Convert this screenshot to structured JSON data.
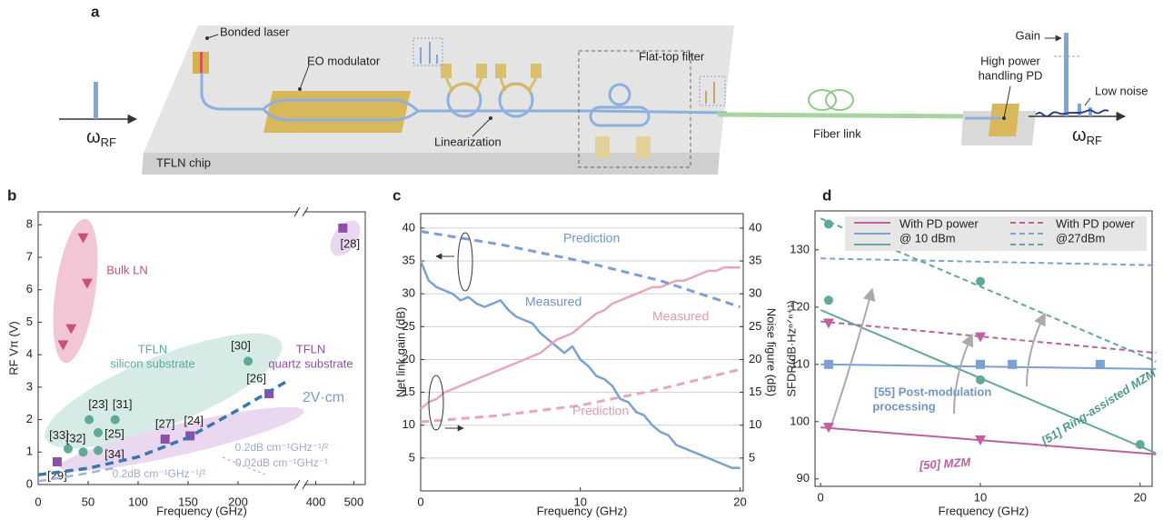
{
  "panel_labels": [
    "a",
    "b",
    "c",
    "d"
  ],
  "diagram": {
    "input": {
      "symbol": "ω",
      "subscript": "RF"
    },
    "output": {
      "symbol": "ω",
      "subscript": "RF"
    },
    "labels": {
      "laser": "Bonded laser",
      "modulator": "EO modulator",
      "linearization": "Linearization",
      "filter": "Flat-top filter",
      "fiber": "Fiber link",
      "pd": [
        "High power",
        "handling PD"
      ],
      "gain": "Gain",
      "noise": "Low noise",
      "chip": "TFLN chip"
    }
  },
  "chart_data": [
    {
      "type": "scatter",
      "xlabel": "Frequency (GHz)",
      "ylabel": "RF Vπ (V)",
      "xlim": [
        0,
        530
      ],
      "xbreak": [
        260,
        370
      ],
      "ylim": [
        0,
        8.4
      ],
      "xticks": [
        0,
        50,
        100,
        150,
        200,
        400,
        500
      ],
      "yticks": [
        0,
        1,
        2,
        3,
        4,
        5,
        6,
        7,
        8
      ],
      "grid": false,
      "series": [
        {
          "marker": "triangle",
          "color": "#c8507f",
          "x": [
            45,
            49,
            33,
            25
          ],
          "values": [
            7.6,
            6.2,
            4.8,
            4.3
          ]
        },
        {
          "marker": "circle",
          "color": "#5fa89a",
          "x": [
            51,
            77,
            60,
            30,
            45,
            60,
            210
          ],
          "values": [
            2.0,
            2.0,
            1.6,
            1.1,
            1.0,
            1.05,
            3.8
          ],
          "labels": [
            "[23]",
            "[31]",
            "[25]",
            "[33]",
            "[32]",
            "[34]",
            "[30]"
          ]
        },
        {
          "marker": "square",
          "color": "#8e4fa8",
          "x": [
            19,
            127,
            152,
            231,
            471
          ],
          "values": [
            0.7,
            1.4,
            1.5,
            2.8,
            7.9
          ],
          "labels": [
            "[29]",
            "[27]",
            "[24]",
            "[26]",
            "[28]"
          ]
        },
        {
          "line": true,
          "dash": true,
          "width": 3.5,
          "color": "#3a75b0",
          "x": [
            0,
            50,
            100,
            150,
            200,
            250
          ],
          "values": [
            0.3,
            0.5,
            0.85,
            1.45,
            2.3,
            3.2
          ]
        },
        {
          "line": true,
          "dash": true,
          "width": 2.5,
          "color": "#9cb3dc",
          "x": [
            0,
            40,
            75
          ],
          "values": [
            0.1,
            0.3,
            0.5
          ]
        }
      ],
      "annotations": [
        "Bulk LN",
        "TFLN",
        "silicon substrate",
        "TFLN",
        "quartz substrate",
        "2V·cm",
        "0.2dB cm⁻¹GHz⁻¹/²",
        "0.02dB cm⁻¹GHz⁻¹",
        "0.2dB cm⁻¹GHz⁻¹/²"
      ]
    },
    {
      "type": "line",
      "xlabel": "Frequency (GHz)",
      "ylabel": "Net link gain (dB)",
      "y2label": "Noise figure (dB)",
      "xlim": [
        0,
        20.2
      ],
      "ylim": [
        0,
        42.2
      ],
      "y2lim": [
        0,
        42.2
      ],
      "xticks": [
        0,
        10,
        20
      ],
      "yticks": [
        5,
        10,
        15,
        20,
        25,
        30,
        35,
        40
      ],
      "y2ticks": [
        5,
        10,
        15,
        20,
        25,
        30,
        35,
        40
      ],
      "grid": true,
      "series": [
        {
          "name": "Measured",
          "line": true,
          "width": 2.5,
          "color": "#7aa0d4",
          "x": [
            0,
            0.5,
            1,
            1.5,
            2,
            2.5,
            3,
            3.5,
            4,
            4.5,
            5,
            5.5,
            6,
            6.5,
            7,
            7.5,
            8,
            8.5,
            9,
            9.5,
            10,
            10.5,
            11,
            11.5,
            12,
            12.5,
            13,
            13.5,
            14,
            14.5,
            15,
            15.5,
            16,
            16.5,
            17,
            17.5,
            18,
            18.5,
            19,
            19.5,
            20
          ],
          "values": [
            35,
            32,
            31,
            30.5,
            30,
            29,
            29.5,
            28.5,
            28,
            28.5,
            29,
            27.5,
            26.5,
            26,
            25.5,
            24,
            23,
            22,
            21,
            22,
            20,
            19,
            17.5,
            17,
            16,
            14,
            13.5,
            12,
            11.5,
            10,
            9,
            8.5,
            7,
            6.5,
            6,
            5.5,
            5,
            4.5,
            4,
            3.5,
            3.5
          ]
        },
        {
          "name": "Measured",
          "axis": "y2",
          "line": true,
          "width": 2.5,
          "color": "#e8a6b8",
          "x": [
            0,
            0.5,
            1,
            1.5,
            2,
            2.5,
            3,
            3.5,
            4,
            4.5,
            5,
            5.5,
            6,
            6.5,
            7,
            7.5,
            8,
            8.5,
            9,
            9.5,
            10,
            10.5,
            11,
            11.5,
            12,
            12.5,
            13,
            13.5,
            14,
            14.5,
            15,
            15.5,
            16,
            16.5,
            17,
            17.5,
            18,
            18.5,
            19,
            19.5,
            20
          ],
          "values": [
            12.5,
            13.5,
            14,
            15,
            15.5,
            16,
            16.5,
            17,
            17.5,
            18,
            18.5,
            19,
            19.5,
            20,
            20.5,
            21,
            22,
            23,
            23.5,
            24,
            25,
            26,
            27,
            27.5,
            28.5,
            29,
            29.5,
            30,
            30.5,
            31,
            31,
            31.5,
            32,
            32,
            32.5,
            33,
            33.5,
            33.5,
            34,
            34,
            34
          ]
        },
        {
          "name": "Prediction",
          "line": true,
          "dash": true,
          "width": 3,
          "color": "#7aa0d4",
          "x": [
            0,
            5,
            10,
            15,
            20
          ],
          "values": [
            39.5,
            37.5,
            35,
            32,
            28
          ]
        },
        {
          "name": "Prediction",
          "axis": "y2",
          "line": true,
          "dash": true,
          "width": 3,
          "color": "#e8a6b8",
          "x": [
            0,
            5,
            10,
            15,
            20
          ],
          "values": [
            10.5,
            11.5,
            13,
            15.5,
            18.5
          ]
        }
      ]
    },
    {
      "type": "line",
      "xlabel": "Frequency (GHz)",
      "ylabel": "SFDR(dB·Hzⁿᐟⁿ⁺¹)",
      "xlim": [
        -0.35,
        20.75
      ],
      "ylim": [
        88.7,
        136.8
      ],
      "xticks": [
        0,
        10,
        20
      ],
      "yticks": [
        90,
        100,
        110,
        120,
        130
      ],
      "grid": false,
      "legend": [
        {
          "lines": [
            "With PD power",
            "@ 10 dBm"
          ],
          "dash": false
        },
        {
          "lines": [
            "With PD power",
            "@27dBm"
          ],
          "dash": true
        }
      ],
      "series": [
        {
          "line": true,
          "width": 2,
          "color": "#c0609f",
          "x": [
            0,
            21
          ],
          "values": [
            99,
            94.3
          ]
        },
        {
          "line": true,
          "width": 2,
          "color": "#7aa0d4",
          "x": [
            0,
            21
          ],
          "values": [
            110,
            109.2
          ]
        },
        {
          "line": true,
          "width": 2,
          "color": "#5fa89a",
          "x": [
            0,
            21
          ],
          "values": [
            119.5,
            94.5
          ]
        },
        {
          "line": true,
          "dash": true,
          "width": 2,
          "color": "#c0609f",
          "x": [
            0,
            21
          ],
          "values": [
            117.5,
            112
          ]
        },
        {
          "line": true,
          "dash": true,
          "width": 2,
          "color": "#7aa0d4",
          "x": [
            0,
            21
          ],
          "values": [
            128.5,
            127.3
          ]
        },
        {
          "line": true,
          "dash": true,
          "width": 2,
          "color": "#5fa89a",
          "x": [
            0,
            21
          ],
          "values": [
            135.5,
            110.5
          ]
        },
        {
          "marker": "triangle",
          "color": "#c0609f",
          "x": [
            0.5,
            10,
            0.5,
            10
          ],
          "values": [
            99,
            96.8,
            117.2,
            114.8
          ]
        },
        {
          "marker": "square",
          "color": "#7aa0d4",
          "x": [
            0.5,
            10,
            12,
            17.5
          ],
          "values": [
            110,
            110,
            110,
            110
          ]
        },
        {
          "marker": "circle",
          "color": "#5fa89a",
          "x": [
            0.5,
            10,
            20,
            0.5,
            10
          ],
          "values": [
            121.2,
            107.3,
            96,
            134.5,
            124.5
          ]
        }
      ],
      "annotations": [
        "[55] Post-modulation",
        "processing",
        "[51]  Ring-assisted MZM",
        "[50]  MZM"
      ]
    }
  ]
}
